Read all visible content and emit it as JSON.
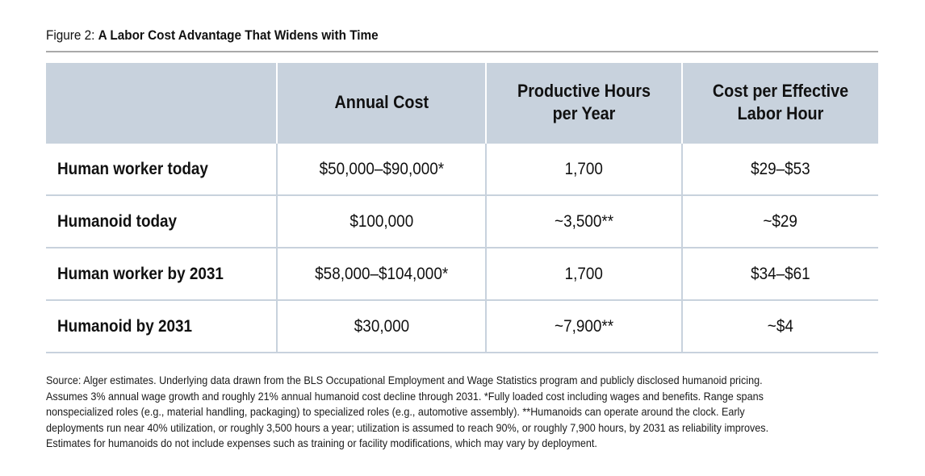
{
  "figure": {
    "label": "Figure 2:",
    "title": "A Labor Cost Advantage That Widens with Time"
  },
  "table": {
    "headers": [
      "",
      "Annual Cost",
      "Productive Hours per Year",
      "Cost per Effective Labor Hour"
    ],
    "rows": [
      [
        "Human worker today",
        "$50,000–$90,000*",
        "1,700",
        "$29–$53"
      ],
      [
        "Humanoid today",
        "$100,000",
        "~3,500**",
        "~$29"
      ],
      [
        "Human worker by 2031",
        "$58,000–$104,000*",
        "1,700",
        "$34–$61"
      ],
      [
        "Humanoid by 2031",
        "$30,000",
        "~7,900**",
        "~$4"
      ]
    ]
  },
  "source_note": {
    "lines": [
      "Source: Alger estimates. Underlying data drawn from the BLS Occupational Employment and Wage Statistics program and publicly disclosed humanoid pricing.",
      "Assumes 3% annual wage growth and roughly 21% annual humanoid cost decline through 2031. *Fully loaded cost including wages and benefits. Range spans",
      "nonspecialized roles (e.g., material handling, packaging) to specialized roles (e.g., automotive assembly). **Humanoids can operate around the clock. Early",
      "deployments run near 40% utilization, or roughly 3,500 hours a year; utilization is assumed to reach 90%, or roughly 7,900 hours, by 2031 as reliability improves.",
      "Estimates for humanoids do not include expenses such as training or facility modifications, which may vary by deployment."
    ]
  },
  "colors": {
    "header_bg": "#c8d2dd",
    "rule": "#a9a9a9",
    "text": "#111111"
  }
}
